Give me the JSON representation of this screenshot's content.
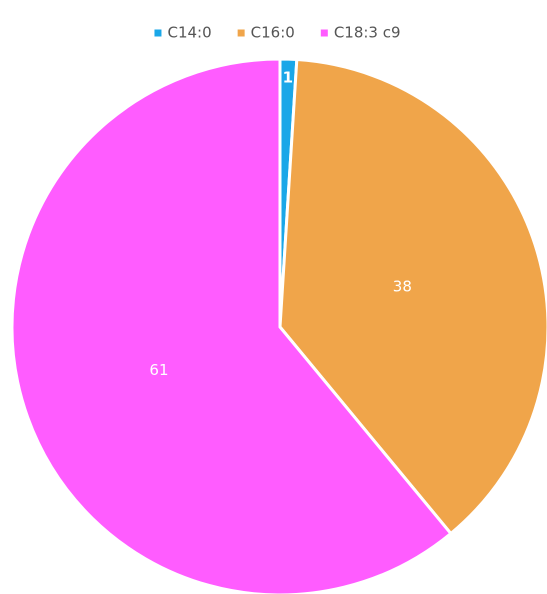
{
  "chart_data": {
    "type": "pie",
    "categories": [
      "C14:0",
      "C16:0",
      "C18:3 c9"
    ],
    "values": [
      1,
      38,
      61
    ],
    "colors": [
      "#1aa7e8",
      "#f0a54a",
      "#ff5cff"
    ],
    "legend": "top"
  }
}
